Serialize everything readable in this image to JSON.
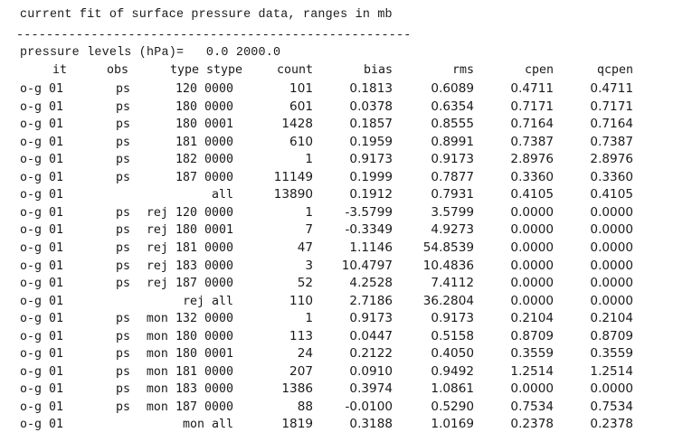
{
  "heading": "current fit of surface pressure data, ranges in mb",
  "separator": "------------------------------------------------------------------------",
  "levels_line": "pressure levels (hPa)=   0.0 2000.0",
  "columns": {
    "it": "it",
    "obs": "obs",
    "type": "type stype",
    "count": "count",
    "bias": "bias",
    "rms": "rms",
    "cpen": "cpen",
    "qcpen": "qcpen"
  },
  "rows": [
    {
      "it": "o-g 01",
      "obs": "ps",
      "type": "    120 0000",
      "count": "101",
      "bias": "0.1813",
      "rms": "0.6089",
      "cpen": "0.4711",
      "qcpen": "0.4711"
    },
    {
      "it": "o-g 01",
      "obs": "ps",
      "type": "    180 0000",
      "count": "601",
      "bias": "0.0378",
      "rms": "0.6354",
      "cpen": "0.7171",
      "qcpen": "0.7171"
    },
    {
      "it": "o-g 01",
      "obs": "ps",
      "type": "    180 0001",
      "count": "1428",
      "bias": "0.1857",
      "rms": "0.8555",
      "cpen": "0.7164",
      "qcpen": "0.7164"
    },
    {
      "it": "o-g 01",
      "obs": "ps",
      "type": "    181 0000",
      "count": "610",
      "bias": "0.1959",
      "rms": "0.8991",
      "cpen": "0.7387",
      "qcpen": "0.7387"
    },
    {
      "it": "o-g 01",
      "obs": "ps",
      "type": "    182 0000",
      "count": "1",
      "bias": "0.9173",
      "rms": "0.9173",
      "cpen": "2.8976",
      "qcpen": "2.8976"
    },
    {
      "it": "o-g 01",
      "obs": "ps",
      "type": "    187 0000",
      "count": "11149",
      "bias": "0.1999",
      "rms": "0.7877",
      "cpen": "0.3360",
      "qcpen": "0.3360"
    },
    {
      "it": "o-g 01",
      "obs": "",
      "type": "    all",
      "count": "13890",
      "bias": "0.1912",
      "rms": "0.7931",
      "cpen": "0.4105",
      "qcpen": "0.4105"
    },
    {
      "it": "o-g 01",
      "obs": "ps",
      "type": "rej 120 0000",
      "count": "1",
      "bias": "-3.5799",
      "rms": "3.5799",
      "cpen": "0.0000",
      "qcpen": "0.0000"
    },
    {
      "it": "o-g 01",
      "obs": "ps",
      "type": "rej 180 0001",
      "count": "7",
      "bias": "-0.3349",
      "rms": "4.9273",
      "cpen": "0.0000",
      "qcpen": "0.0000"
    },
    {
      "it": "o-g 01",
      "obs": "ps",
      "type": "rej 181 0000",
      "count": "47",
      "bias": "1.1146",
      "rms": "54.8539",
      "cpen": "0.0000",
      "qcpen": "0.0000"
    },
    {
      "it": "o-g 01",
      "obs": "ps",
      "type": "rej 183 0000",
      "count": "3",
      "bias": "10.4797",
      "rms": "10.4836",
      "cpen": "0.0000",
      "qcpen": "0.0000"
    },
    {
      "it": "o-g 01",
      "obs": "ps",
      "type": "rej 187 0000",
      "count": "52",
      "bias": "4.2528",
      "rms": "7.4112",
      "cpen": "0.0000",
      "qcpen": "0.0000"
    },
    {
      "it": "o-g 01",
      "obs": "",
      "type": "rej all",
      "count": "110",
      "bias": "2.7186",
      "rms": "36.2804",
      "cpen": "0.0000",
      "qcpen": "0.0000"
    },
    {
      "it": "o-g 01",
      "obs": "ps",
      "type": "mon 132 0000",
      "count": "1",
      "bias": "0.9173",
      "rms": "0.9173",
      "cpen": "0.2104",
      "qcpen": "0.2104"
    },
    {
      "it": "o-g 01",
      "obs": "ps",
      "type": "mon 180 0000",
      "count": "113",
      "bias": "0.0447",
      "rms": "0.5158",
      "cpen": "0.8709",
      "qcpen": "0.8709"
    },
    {
      "it": "o-g 01",
      "obs": "ps",
      "type": "mon 180 0001",
      "count": "24",
      "bias": "0.2122",
      "rms": "0.4050",
      "cpen": "0.3559",
      "qcpen": "0.3559"
    },
    {
      "it": "o-g 01",
      "obs": "ps",
      "type": "mon 181 0000",
      "count": "207",
      "bias": "0.0910",
      "rms": "0.9492",
      "cpen": "1.2514",
      "qcpen": "1.2514"
    },
    {
      "it": "o-g 01",
      "obs": "ps",
      "type": "mon 183 0000",
      "count": "1386",
      "bias": "0.3974",
      "rms": "1.0861",
      "cpen": "0.0000",
      "qcpen": "0.0000"
    },
    {
      "it": "o-g 01",
      "obs": "ps",
      "type": "mon 187 0000",
      "count": "88",
      "bias": "-0.0100",
      "rms": "0.5290",
      "cpen": "0.7534",
      "qcpen": "0.7534"
    },
    {
      "it": "o-g 01",
      "obs": "",
      "type": "mon all",
      "count": "1819",
      "bias": "0.3188",
      "rms": "1.0169",
      "cpen": "0.2378",
      "qcpen": "0.2378"
    }
  ]
}
